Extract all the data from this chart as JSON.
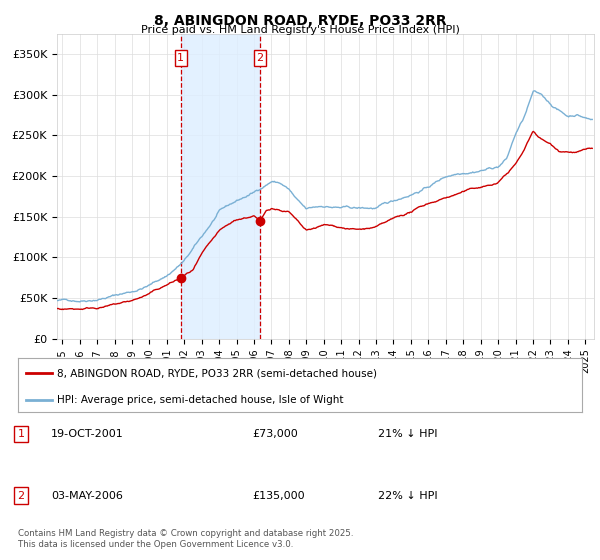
{
  "title": "8, ABINGDON ROAD, RYDE, PO33 2RR",
  "subtitle": "Price paid vs. HM Land Registry's House Price Index (HPI)",
  "background_color": "#ffffff",
  "plot_bg_color": "#ffffff",
  "ylabel_ticks": [
    "£0",
    "£50K",
    "£100K",
    "£150K",
    "£200K",
    "£250K",
    "£300K",
    "£350K"
  ],
  "ytick_vals": [
    0,
    50000,
    100000,
    150000,
    200000,
    250000,
    300000,
    350000
  ],
  "ylim": [
    0,
    375000
  ],
  "xlim_start": 1994.7,
  "xlim_end": 2025.5,
  "transaction1": {
    "date": "19-OCT-2001",
    "price": 73000,
    "label": "1",
    "year": 2001.8,
    "price_str": "£73,000",
    "hpi_pct": "21% ↓ HPI"
  },
  "transaction2": {
    "date": "03-MAY-2006",
    "price": 135000,
    "label": "2",
    "year": 2006.35,
    "price_str": "£135,000",
    "hpi_pct": "22% ↓ HPI"
  },
  "legend_property": "8, ABINGDON ROAD, RYDE, PO33 2RR (semi-detached house)",
  "legend_hpi": "HPI: Average price, semi-detached house, Isle of Wight",
  "footer": "Contains HM Land Registry data © Crown copyright and database right 2025.\nThis data is licensed under the Open Government Licence v3.0.",
  "property_color": "#cc0000",
  "hpi_color": "#7ab0d4",
  "shade_color": "#ddeeff",
  "vline_color": "#cc0000",
  "marker_box_color": "#cc0000",
  "grid_color": "#dddddd",
  "hpi_knots_y": [
    1995,
    1996,
    1997,
    1998,
    1999,
    2000,
    2001,
    2002,
    2003,
    2004,
    2005,
    2006,
    2007,
    2007.5,
    2008,
    2008.5,
    2009,
    2010,
    2011,
    2012,
    2013,
    2014,
    2015,
    2016,
    2017,
    2018,
    2019,
    2020,
    2020.5,
    2021,
    2021.5,
    2022,
    2022.5,
    2023,
    2023.5,
    2024,
    2024.5,
    2025.3
  ],
  "hpi_knots_v": [
    47000,
    48000,
    52000,
    57000,
    62000,
    70000,
    82000,
    100000,
    128000,
    158000,
    170000,
    180000,
    195000,
    193000,
    185000,
    170000,
    158000,
    162000,
    160000,
    158000,
    158000,
    165000,
    175000,
    185000,
    198000,
    205000,
    210000,
    215000,
    225000,
    255000,
    275000,
    305000,
    300000,
    290000,
    282000,
    275000,
    278000,
    272000
  ],
  "prop_knots_y": [
    1995,
    1996,
    1997,
    1998,
    1999,
    2000,
    2001,
    2001.8,
    2002.5,
    2003,
    2004,
    2005,
    2006,
    2006.35,
    2006.7,
    2007,
    2008,
    2008.5,
    2009,
    2010,
    2011,
    2012,
    2013,
    2014,
    2015,
    2016,
    2017,
    2018,
    2019,
    2020,
    2021,
    2021.5,
    2022,
    2022.5,
    2023,
    2023.5,
    2024,
    2024.5,
    2025.3
  ],
  "prop_knots_v": [
    37000,
    37500,
    40000,
    43000,
    47000,
    55000,
    65000,
    73000,
    82000,
    100000,
    125000,
    138000,
    143000,
    135000,
    148000,
    152000,
    148000,
    135000,
    122000,
    128000,
    125000,
    122000,
    124000,
    132000,
    140000,
    150000,
    158000,
    165000,
    170000,
    175000,
    198000,
    215000,
    238000,
    228000,
    222000,
    215000,
    215000,
    215000,
    218000
  ]
}
